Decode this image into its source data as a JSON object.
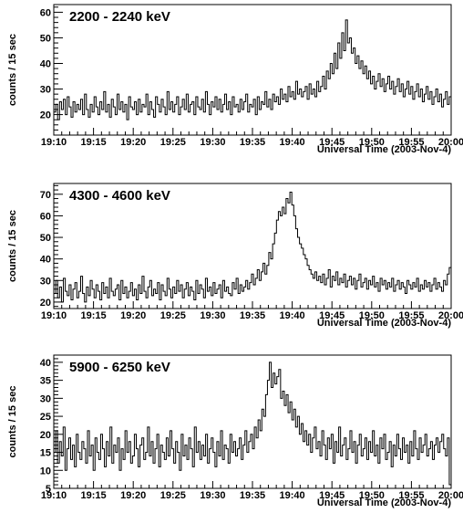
{
  "chart_data": [
    {
      "type": "line",
      "title": "2200 - 2240 keV",
      "ylabel": "counts / 15 sec",
      "xlabel": "Universal Time (2003-Nov-4)",
      "x_tick_labels": [
        "19:10",
        "19:15",
        "19:20",
        "19:25",
        "19:30",
        "19:35",
        "19:40",
        "19:45",
        "19:50",
        "19:55",
        "20:00"
      ],
      "y_tick_labels": [
        "20",
        "30",
        "40",
        "50",
        "60"
      ],
      "ylim": [
        12,
        63
      ],
      "x_range": [
        "19:10",
        "20:00"
      ],
      "bin_seconds": 15,
      "series": [
        {
          "values": [
            21,
            24,
            18,
            25,
            22,
            26,
            20,
            27,
            23,
            19,
            25,
            21,
            24,
            22,
            26,
            20,
            28,
            22,
            19,
            24,
            21,
            27,
            23,
            20,
            25,
            22,
            29,
            21,
            24,
            19,
            26,
            23,
            20,
            28,
            22,
            25,
            21,
            24,
            18,
            27,
            23,
            22,
            25,
            20,
            26,
            21,
            24,
            23,
            28,
            20,
            25,
            22,
            19,
            27,
            24,
            21,
            26,
            23,
            20,
            29,
            22,
            25,
            21,
            24,
            27,
            20,
            23,
            26,
            22,
            28,
            21,
            24,
            25,
            20,
            27,
            23,
            22,
            26,
            21,
            29,
            24,
            20,
            25,
            23,
            27,
            22,
            26,
            21,
            24,
            28,
            22,
            25,
            20,
            27,
            23,
            24,
            21,
            26,
            22,
            25,
            28,
            21,
            24,
            23,
            26,
            20,
            27,
            22,
            25,
            24,
            29,
            23,
            26,
            22,
            28,
            25,
            27,
            24,
            30,
            26,
            28,
            25,
            31,
            27,
            29,
            26,
            33,
            28,
            30,
            27,
            29,
            31,
            26,
            32,
            28,
            30,
            27,
            33,
            29,
            31,
            35,
            30,
            37,
            34,
            40,
            36,
            44,
            38,
            48,
            42,
            52,
            45,
            57,
            48,
            50,
            44,
            46,
            40,
            43,
            38,
            41,
            36,
            39,
            34,
            37,
            32,
            35,
            30,
            33,
            36,
            31,
            34,
            29,
            32,
            35,
            30,
            33,
            28,
            31,
            34,
            29,
            32,
            27,
            30,
            33,
            28,
            31,
            26,
            29,
            32,
            27,
            30,
            25,
            28,
            31,
            26,
            29,
            24,
            27,
            30,
            25,
            28,
            23,
            26,
            29,
            24,
            27
          ]
        }
      ]
    },
    {
      "type": "line",
      "title": "4300 - 4600 keV",
      "ylabel": "counts / 15 sec",
      "xlabel": "Universal Time (2003-Nov-4)",
      "x_tick_labels": [
        "19:10",
        "19:15",
        "19:20",
        "19:25",
        "19:30",
        "19:35",
        "19:40",
        "19:45",
        "19:50",
        "19:55",
        "20:00"
      ],
      "y_tick_labels": [
        "20",
        "30",
        "40",
        "50",
        "60",
        "70"
      ],
      "ylim": [
        17,
        75
      ],
      "x_range": [
        "19:10",
        "20:00"
      ],
      "bin_seconds": 15,
      "series": [
        {
          "values": [
            24,
            30,
            22,
            27,
            20,
            31,
            25,
            23,
            28,
            21,
            26,
            29,
            22,
            25,
            32,
            24,
            20,
            27,
            23,
            30,
            26,
            22,
            28,
            25,
            21,
            29,
            24,
            27,
            22,
            31,
            25,
            23,
            26,
            28,
            21,
            30,
            24,
            27,
            22,
            25,
            29,
            23,
            26,
            21,
            28,
            24,
            32,
            25,
            22,
            27,
            30,
            23,
            26,
            24,
            29,
            21,
            28,
            25,
            23,
            31,
            26,
            22,
            27,
            24,
            30,
            25,
            28,
            22,
            26,
            29,
            23,
            27,
            25,
            21,
            30,
            24,
            28,
            26,
            22,
            31,
            25,
            27,
            23,
            29,
            24,
            26,
            28,
            22,
            30,
            25,
            27,
            24,
            23,
            29,
            26,
            31,
            24,
            28,
            25,
            27,
            30,
            26,
            29,
            33,
            28,
            31,
            35,
            30,
            34,
            38,
            33,
            37,
            43,
            40,
            47,
            52,
            58,
            62,
            60,
            64,
            61,
            68,
            66,
            71,
            65,
            60,
            54,
            50,
            47,
            45,
            42,
            40,
            37,
            35,
            33,
            31,
            34,
            30,
            32,
            29,
            33,
            28,
            31,
            35,
            27,
            32,
            30,
            34,
            28,
            31,
            29,
            33,
            27,
            30,
            32,
            28,
            31,
            26,
            30,
            33,
            27,
            29,
            31,
            26,
            30,
            28,
            32,
            27,
            29,
            25,
            31,
            28,
            30,
            26,
            29,
            27,
            31,
            25,
            28,
            30,
            26,
            29,
            27,
            24,
            30,
            28,
            26,
            29,
            27,
            31,
            25,
            28,
            26,
            30,
            27,
            29,
            25,
            28,
            31,
            26,
            29,
            27,
            25,
            30,
            28,
            33,
            36
          ]
        }
      ]
    },
    {
      "type": "line",
      "title": "5900 - 6250 keV",
      "ylabel": "counts / 15 sec",
      "xlabel": "Universal Time (2003-Nov-4)",
      "x_tick_labels": [
        "19:10",
        "19:15",
        "19:20",
        "19:25",
        "19:30",
        "19:35",
        "19:40",
        "19:45",
        "19:50",
        "19:55",
        "20:00"
      ],
      "y_tick_labels": [
        "5",
        "10",
        "15",
        "20",
        "25",
        "30",
        "35",
        "40"
      ],
      "ylim": [
        5,
        42
      ],
      "x_range": [
        "19:10",
        "20:00"
      ],
      "bin_seconds": 15,
      "series": [
        {
          "values": [
            15,
            21,
            12,
            18,
            14,
            22,
            10,
            16,
            19,
            13,
            17,
            11,
            20,
            15,
            13,
            18,
            16,
            12,
            21,
            14,
            17,
            10,
            19,
            15,
            13,
            20,
            16,
            11,
            18,
            14,
            22,
            12,
            17,
            15,
            19,
            10,
            16,
            13,
            21,
            15,
            18,
            12,
            14,
            20,
            16,
            11,
            17,
            19,
            13,
            15,
            22,
            14,
            18,
            12,
            16,
            20,
            11,
            17,
            15,
            13,
            19,
            14,
            21,
            16,
            12,
            18,
            15,
            10,
            20,
            14,
            17,
            13,
            19,
            16,
            11,
            22,
            15,
            18,
            13,
            17,
            14,
            20,
            12,
            16,
            19,
            15,
            11,
            18,
            14,
            21,
            13,
            17,
            16,
            12,
            20,
            15,
            18,
            14,
            16,
            19,
            13,
            17,
            21,
            15,
            18,
            20,
            16,
            22,
            19,
            24,
            21,
            27,
            25,
            31,
            35,
            40,
            33,
            37,
            34,
            36,
            38,
            30,
            32,
            28,
            31,
            26,
            29,
            24,
            27,
            22,
            25,
            20,
            23,
            18,
            21,
            17,
            20,
            15,
            19,
            22,
            16,
            18,
            14,
            21,
            17,
            13,
            19,
            16,
            20,
            12,
            18,
            15,
            22,
            14,
            17,
            19,
            13,
            16,
            21,
            15,
            18,
            12,
            17,
            20,
            14,
            16,
            19,
            13,
            18,
            15,
            21,
            14,
            17,
            12,
            19,
            16,
            20,
            13,
            15,
            18,
            11,
            17,
            14,
            20,
            16,
            13,
            19,
            15,
            17,
            12,
            18,
            14,
            21,
            16,
            13,
            19,
            15,
            17,
            20,
            14,
            16,
            18,
            13,
            17,
            19,
            15,
            18,
            20,
            16,
            14,
            19,
            6
          ]
        }
      ]
    }
  ]
}
